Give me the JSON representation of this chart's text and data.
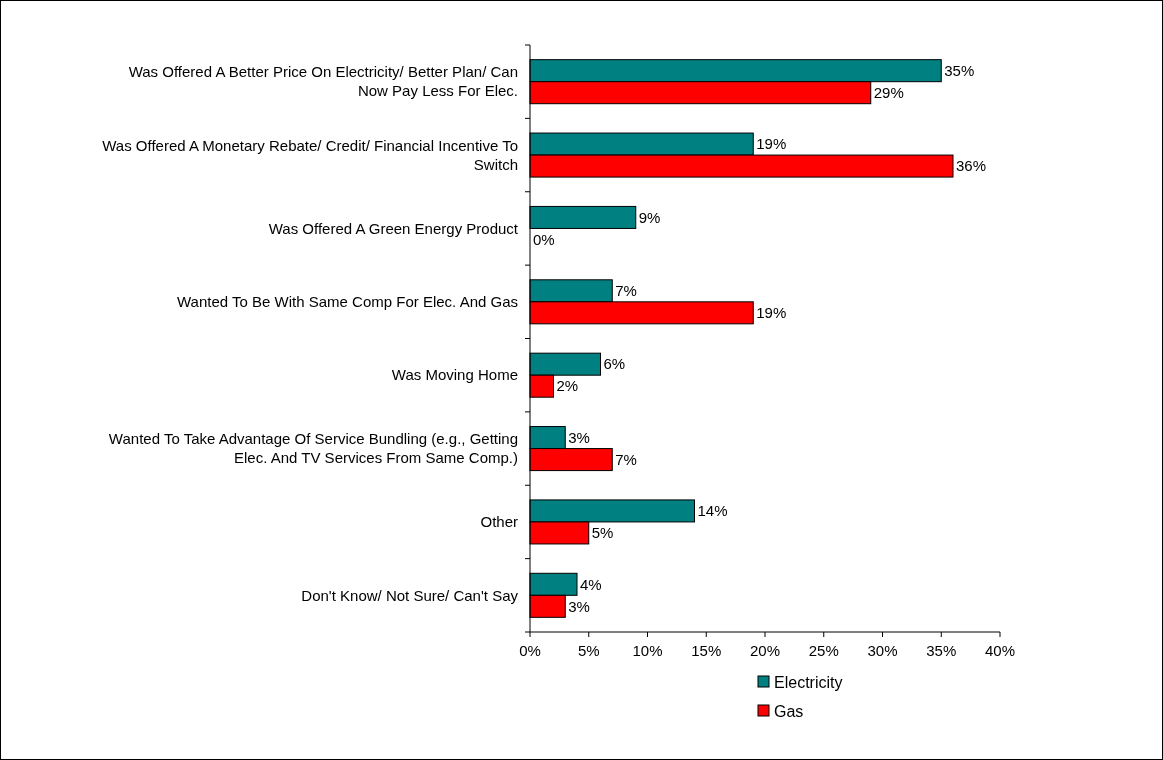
{
  "chart_data": {
    "type": "bar",
    "orientation": "horizontal",
    "categories": [
      "Was Offered A Better Price On Electricity/ Better Plan/ Can Now Pay Less For Elec.",
      "Was Offered A Monetary Rebate/ Credit/ Financial Incentive To Switch",
      "Was Offered A Green Energy Product",
      "Wanted To Be With Same Comp For Elec. And Gas",
      "Was Moving Home",
      "Wanted To Take Advantage Of Service Bundling (e.g., Getting Elec. And TV Services From Same Comp.)",
      "Other",
      "Don't Know/ Not Sure/ Can't Say"
    ],
    "series": [
      {
        "name": "Electricity",
        "color": "#008080",
        "values": [
          35,
          19,
          9,
          7,
          6,
          3,
          14,
          4
        ],
        "value_labels": [
          "35%",
          "19%",
          "9%",
          "7%",
          "6%",
          "3%",
          "14%",
          "4%"
        ]
      },
      {
        "name": "Gas",
        "color": "#ff0000",
        "values": [
          29,
          36,
          0,
          19,
          2,
          7,
          5,
          3
        ],
        "value_labels": [
          "29%",
          "36%",
          "0%",
          "19%",
          "2%",
          "7%",
          "5%",
          "3%"
        ]
      }
    ],
    "xlim": [
      0,
      40
    ],
    "xticks": [
      {
        "value": 0,
        "label": "0%"
      },
      {
        "value": 5,
        "label": "5%"
      },
      {
        "value": 10,
        "label": "10%"
      },
      {
        "value": 15,
        "label": "15%"
      },
      {
        "value": 20,
        "label": "20%"
      },
      {
        "value": 25,
        "label": "25%"
      },
      {
        "value": 30,
        "label": "30%"
      },
      {
        "value": 35,
        "label": "35%"
      },
      {
        "value": 40,
        "label": "40%"
      }
    ],
    "legend": "bottom",
    "grid": false
  }
}
